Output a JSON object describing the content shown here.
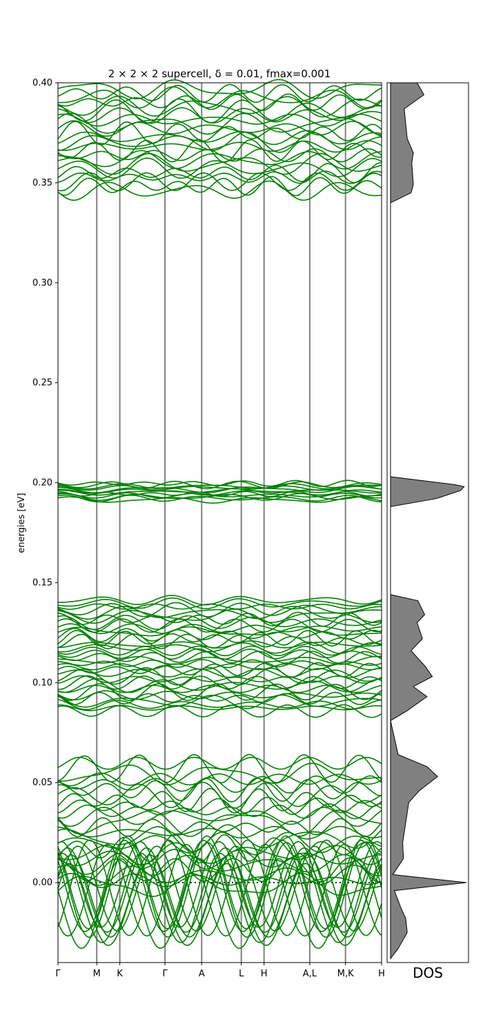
{
  "chart_data": {
    "type": "line",
    "title": "2 × 2 × 2 supercell, δ = 0.01, fmax=0.001",
    "ylabel": "energies [eV]",
    "ylim": [
      -0.04,
      0.4
    ],
    "y_ticks": [
      "0.40",
      "0.35",
      "0.30",
      "0.25",
      "0.20",
      "0.15",
      "0.10",
      "0.05",
      "0.00"
    ],
    "y_tick_values": [
      0.4,
      0.35,
      0.3,
      0.25,
      0.2,
      0.15,
      0.1,
      0.05,
      0.0
    ],
    "path_labels": [
      "Γ",
      "M",
      "K",
      "Γ",
      "A",
      "L",
      "H",
      "A,L",
      "M,K",
      "H"
    ],
    "path_positions": [
      0.0,
      0.1199,
      0.1911,
      0.3307,
      0.4441,
      0.5665,
      0.6368,
      0.7781,
      0.8885,
      1.0
    ],
    "line_color": "#008000",
    "fermi_level": 0.0,
    "bands": {
      "description_groups": [
        {
          "range": [
            0.345,
            0.398
          ],
          "count": 24
        },
        {
          "range": [
            0.191,
            0.2
          ],
          "count": 12
        },
        {
          "range": [
            0.085,
            0.142
          ],
          "count": 36
        },
        {
          "range": [
            -0.035,
            0.061
          ],
          "count": 36
        }
      ]
    },
    "dos": {
      "label": "DOS",
      "fill_color": "#808080",
      "energies": [
        -0.038,
        -0.033,
        -0.025,
        -0.018,
        -0.012,
        -0.004,
        0.0,
        0.004,
        0.012,
        0.02,
        0.03,
        0.04,
        0.046,
        0.053,
        0.058,
        0.064,
        0.081,
        0.086,
        0.093,
        0.098,
        0.103,
        0.108,
        0.116,
        0.122,
        0.13,
        0.134,
        0.141,
        0.144,
        0.188,
        0.192,
        0.196,
        0.198,
        0.199,
        0.203,
        0.34,
        0.345,
        0.349,
        0.36,
        0.365,
        0.372,
        0.387,
        0.394,
        0.4
      ],
      "values": [
        0.0,
        0.1,
        0.22,
        0.2,
        0.13,
        0.05,
        1.0,
        0.03,
        0.17,
        0.16,
        0.2,
        0.24,
        0.38,
        0.62,
        0.48,
        0.1,
        0.0,
        0.22,
        0.48,
        0.3,
        0.55,
        0.46,
        0.27,
        0.42,
        0.35,
        0.45,
        0.36,
        0.0,
        0.0,
        0.6,
        0.92,
        0.97,
        0.85,
        0.0,
        0.0,
        0.27,
        0.3,
        0.28,
        0.3,
        0.22,
        0.18,
        0.44,
        0.35
      ]
    }
  }
}
